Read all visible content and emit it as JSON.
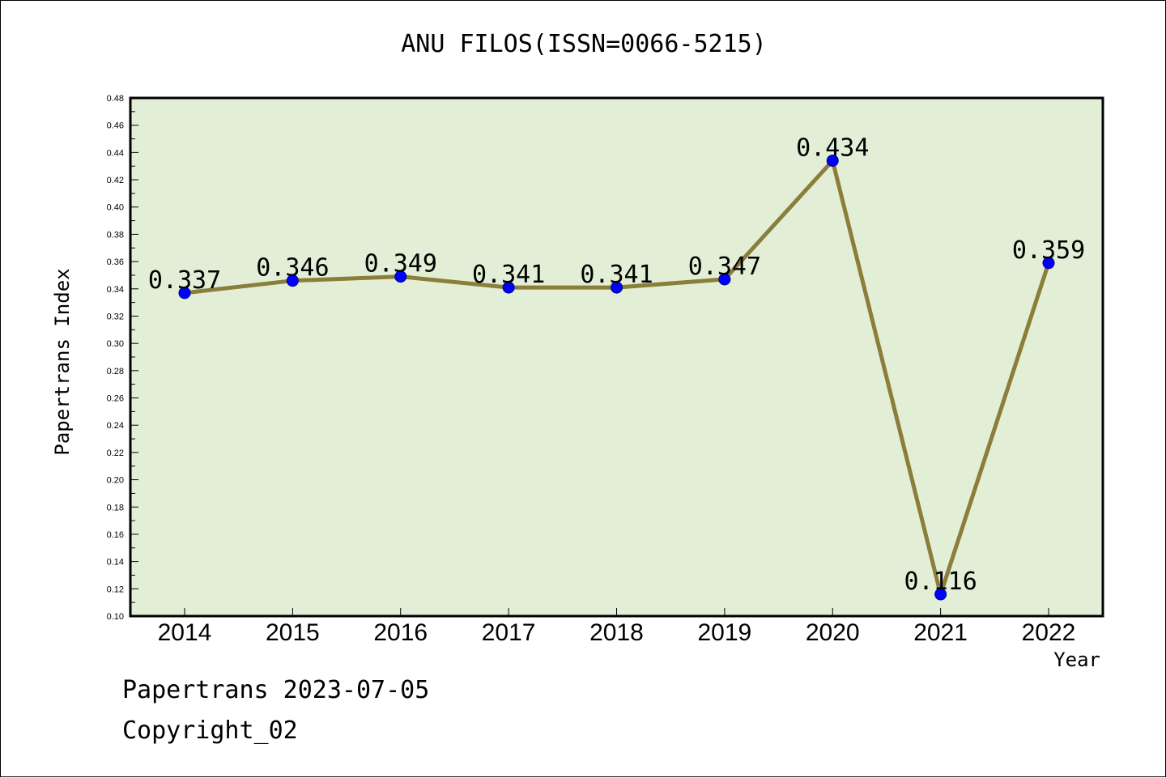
{
  "chart_data": {
    "type": "line",
    "title": "ANU FILOS(ISSN=0066-5215)",
    "xlabel": "Year",
    "ylabel": "Papertrans Index",
    "categories": [
      "2014",
      "2015",
      "2016",
      "2017",
      "2018",
      "2019",
      "2020",
      "2021",
      "2022"
    ],
    "series": [
      {
        "values": [
          0.337,
          0.346,
          0.349,
          0.341,
          0.341,
          0.347,
          0.434,
          0.116,
          0.359
        ],
        "labels": [
          "0.337",
          "0.346",
          "0.349",
          "0.341",
          "0.341",
          "0.347",
          "0.434",
          "0.116",
          "0.359"
        ],
        "line_color": "#8b7d3a",
        "marker_color": "#0000ff"
      }
    ],
    "ylim": [
      0.1,
      0.48
    ],
    "yticks": [
      "0.10",
      "0.12",
      "0.14",
      "0.16",
      "0.18",
      "0.20",
      "0.22",
      "0.24",
      "0.26",
      "0.28",
      "0.30",
      "0.32",
      "0.34",
      "0.36",
      "0.38",
      "0.40",
      "0.42",
      "0.44",
      "0.46",
      "0.48"
    ],
    "plot_background": "#e2efd6",
    "grid": false
  },
  "footer": {
    "date_line": "Papertrans 2023-07-05",
    "copyright_line": "Copyright_02"
  }
}
